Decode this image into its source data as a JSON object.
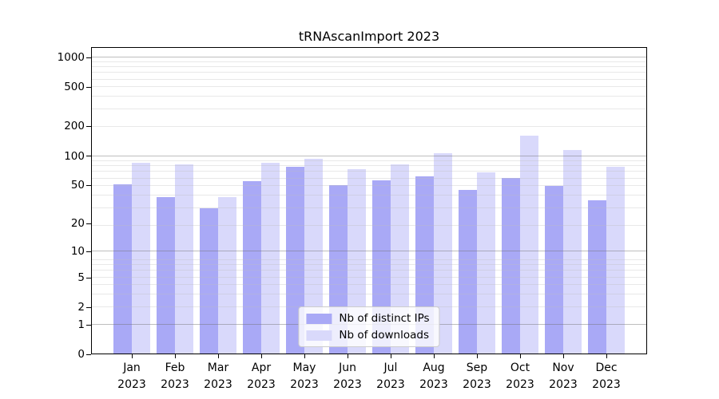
{
  "chart_data": {
    "type": "bar",
    "title": "tRNAscanImport 2023",
    "yscale": "log1p",
    "grid": true,
    "legend_position": "lower center",
    "xlabel": "",
    "ylabel": "",
    "ylim": [
      0,
      1300
    ],
    "yticks": [
      0,
      1,
      2,
      5,
      10,
      20,
      50,
      100,
      200,
      500,
      1000
    ],
    "categories": [
      "Jan 2023",
      "Feb 2023",
      "Mar 2023",
      "Apr 2023",
      "May 2023",
      "Jun 2023",
      "Jul 2023",
      "Aug 2023",
      "Sep 2023",
      "Oct 2023",
      "Nov 2023",
      "Dec 2023"
    ],
    "series": [
      {
        "name": "Nb of distinct IPs",
        "color": "#a9a9f6",
        "values": [
          51,
          38,
          29,
          55,
          77,
          50,
          56,
          62,
          45,
          60,
          49,
          35
        ]
      },
      {
        "name": "Nb of downloads",
        "color": "#d9d9fb",
        "values": [
          86,
          82,
          38,
          86,
          93,
          73,
          82,
          107,
          68,
          160,
          116,
          78
        ]
      }
    ]
  },
  "colors": {
    "major_gridline": "#6e6e6e",
    "minor_gridline": "#bebebe",
    "axis_spine": "#000000",
    "legend_border": "#cccccc"
  }
}
